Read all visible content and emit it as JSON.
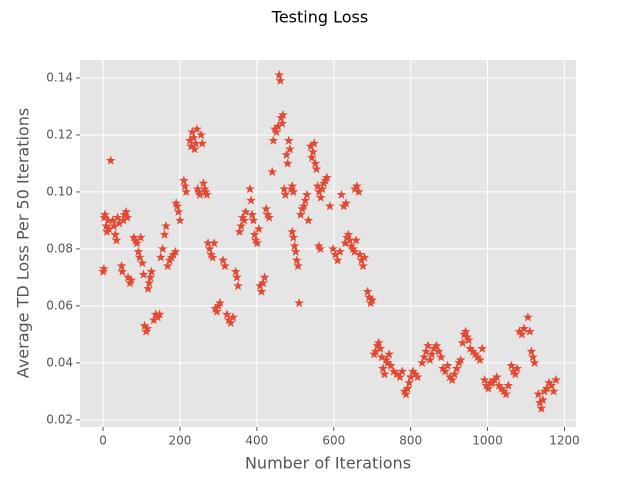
{
  "chart_data": {
    "type": "scatter",
    "title": "Testing Loss",
    "x_label": "Number of Iterations",
    "y_label": "Average TD Loss Per 50 Iterations",
    "color": "#e24a33",
    "marker": "star",
    "grid": true,
    "xlim": [
      -60,
      1230
    ],
    "xticks": [
      0,
      200,
      400,
      600,
      800,
      1000,
      1200
    ],
    "ylim": [
      0.0175,
      0.1463
    ],
    "yticks": [
      0.02,
      0.04,
      0.06,
      0.08,
      {
        "value": 0.1,
        "label": "0.10"
      },
      0.12,
      0.14
    ],
    "x": [
      0,
      2,
      3,
      5,
      8,
      10,
      13,
      15,
      20,
      25,
      28,
      32,
      35,
      38,
      42,
      48,
      50,
      53,
      56,
      60,
      63,
      65,
      70,
      73,
      80,
      84,
      88,
      92,
      95,
      98,
      102,
      105,
      108,
      112,
      115,
      117,
      120,
      123,
      126,
      132,
      137,
      142,
      147,
      150,
      155,
      160,
      164,
      168,
      173,
      178,
      183,
      188,
      190,
      193,
      196,
      200,
      210,
      213,
      216,
      226,
      229,
      232,
      235,
      238,
      241,
      244,
      246,
      249,
      252,
      255,
      258,
      261,
      264,
      267,
      270,
      273,
      277,
      281,
      285,
      289,
      292,
      296,
      300,
      304,
      312,
      317,
      322,
      327,
      332,
      338,
      345,
      348,
      351,
      355,
      359,
      363,
      367,
      371,
      382,
      385,
      388,
      391,
      394,
      397,
      401,
      405,
      408,
      412,
      416,
      420,
      424,
      428,
      432,
      440,
      443,
      447,
      451,
      455,
      458,
      461,
      463,
      466,
      468,
      471,
      474,
      477,
      480,
      483,
      486,
      489,
      492,
      495,
      492,
      495,
      498,
      501,
      504,
      507,
      510,
      514,
      518,
      522,
      526,
      530,
      534,
      540,
      543,
      546,
      549,
      552,
      555,
      558,
      562,
      566,
      570,
      574,
      578,
      582,
      561,
      565,
      590,
      598,
      604,
      610,
      616,
      620,
      626,
      632,
      630,
      634,
      638,
      642,
      646,
      650,
      654,
      658,
      655,
      660,
      665,
      668,
      672,
      676,
      680,
      688,
      692,
      696,
      700,
      705,
      709,
      713,
      717,
      721,
      725,
      728,
      732,
      736,
      740,
      744,
      748,
      756,
      764,
      772,
      778,
      784,
      788,
      792,
      796,
      800,
      806,
      812,
      818,
      830,
      835,
      840,
      845,
      850,
      855,
      861,
      867,
      873,
      879,
      884,
      890,
      896,
      902,
      908,
      914,
      920,
      926,
      930,
      935,
      939,
      943,
      947,
      951,
      955,
      962,
      968,
      974,
      980,
      986,
      992,
      997,
      1002,
      1007,
      1012,
      1018,
      1024,
      1030,
      1036,
      1042,
      1048,
      1054,
      1062,
      1067,
      1072,
      1077,
      1083,
      1089,
      1095,
      1105,
      1110,
      1114,
      1118,
      1122,
      1132,
      1136,
      1140,
      1144,
      1148,
      1154,
      1160,
      1166,
      1172,
      1178
    ],
    "values": [
      0.072,
      0.073,
      0.091,
      0.092,
      0.088,
      0.086,
      0.09,
      0.087,
      0.111,
      0.09,
      0.088,
      0.085,
      0.083,
      0.091,
      0.089,
      0.074,
      0.072,
      0.09,
      0.092,
      0.093,
      0.091,
      0.07,
      0.068,
      0.069,
      0.084,
      0.083,
      0.082,
      0.079,
      0.077,
      0.084,
      0.075,
      0.071,
      0.053,
      0.051,
      0.052,
      0.066,
      0.068,
      0.07,
      0.072,
      0.055,
      0.057,
      0.056,
      0.057,
      0.077,
      0.08,
      0.085,
      0.088,
      0.074,
      0.076,
      0.077,
      0.078,
      0.079,
      0.096,
      0.095,
      0.093,
      0.09,
      0.104,
      0.102,
      0.1,
      0.118,
      0.116,
      0.121,
      0.119,
      0.115,
      0.117,
      0.122,
      0.101,
      0.1,
      0.099,
      0.12,
      0.117,
      0.103,
      0.101,
      0.1,
      0.099,
      0.082,
      0.08,
      0.078,
      0.077,
      0.082,
      0.059,
      0.058,
      0.06,
      0.061,
      0.076,
      0.074,
      0.057,
      0.055,
      0.054,
      0.056,
      0.072,
      0.07,
      0.067,
      0.086,
      0.088,
      0.091,
      0.09,
      0.093,
      0.101,
      0.097,
      0.092,
      0.09,
      0.085,
      0.083,
      0.082,
      0.087,
      0.067,
      0.065,
      0.068,
      0.07,
      0.094,
      0.092,
      0.091,
      0.107,
      0.118,
      0.122,
      0.121,
      0.123,
      0.141,
      0.139,
      0.126,
      0.124,
      0.127,
      0.101,
      0.099,
      0.113,
      0.11,
      0.118,
      0.115,
      0.101,
      0.102,
      0.1,
      0.086,
      0.084,
      0.081,
      0.079,
      0.076,
      0.074,
      0.061,
      0.092,
      0.094,
      0.095,
      0.097,
      0.099,
      0.09,
      0.116,
      0.112,
      0.114,
      0.117,
      0.11,
      0.108,
      0.102,
      0.1,
      0.098,
      0.101,
      0.103,
      0.104,
      0.105,
      0.081,
      0.08,
      0.095,
      0.08,
      0.078,
      0.076,
      0.079,
      0.099,
      0.095,
      0.096,
      0.082,
      0.084,
      0.085,
      0.083,
      0.081,
      0.08,
      0.079,
      0.083,
      0.101,
      0.102,
      0.1,
      0.078,
      0.076,
      0.074,
      0.077,
      0.065,
      0.063,
      0.061,
      0.062,
      0.043,
      0.044,
      0.046,
      0.047,
      0.045,
      0.042,
      0.038,
      0.036,
      0.041,
      0.04,
      0.043,
      0.039,
      0.037,
      0.036,
      0.035,
      0.037,
      0.03,
      0.029,
      0.031,
      0.033,
      0.035,
      0.037,
      0.036,
      0.035,
      0.04,
      0.042,
      0.044,
      0.046,
      0.041,
      0.043,
      0.045,
      0.046,
      0.044,
      0.042,
      0.038,
      0.037,
      0.039,
      0.035,
      0.034,
      0.036,
      0.038,
      0.04,
      0.041,
      0.047,
      0.05,
      0.051,
      0.049,
      0.048,
      0.045,
      0.044,
      0.043,
      0.042,
      0.041,
      0.045,
      0.034,
      0.032,
      0.031,
      0.033,
      0.033,
      0.034,
      0.035,
      0.032,
      0.031,
      0.03,
      0.029,
      0.032,
      0.039,
      0.037,
      0.036,
      0.038,
      0.051,
      0.05,
      0.052,
      0.056,
      0.051,
      0.044,
      0.042,
      0.04,
      0.029,
      0.026,
      0.024,
      0.027,
      0.03,
      0.031,
      0.033,
      0.032,
      0.03,
      0.034
    ]
  }
}
